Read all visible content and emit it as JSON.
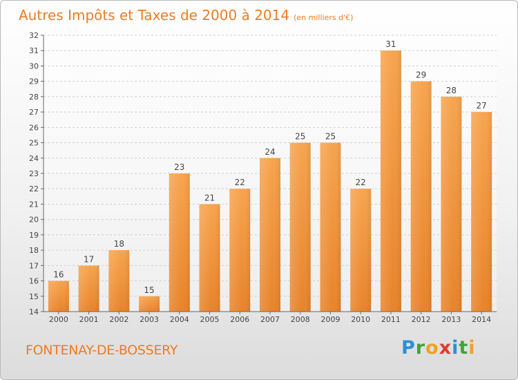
{
  "title": "Autres Impôts et Taxes de 2000 à 2014",
  "subtitle": "(en milliers d'€)",
  "commune": "FONTENAY-DE-BOSSERY",
  "logo": {
    "letters": [
      "P",
      "r",
      "o",
      "x",
      "i",
      "t",
      "i"
    ],
    "colors": [
      "#2e8fd6",
      "#43a23b",
      "#f0a12a",
      "#e23a2a",
      "#2e8fd6",
      "#43a23b",
      "#f0a12a"
    ]
  },
  "colors": {
    "bar_top": "#f7a44e",
    "bar_bottom": "#e8832a",
    "accent": "#ee7b22"
  },
  "chart_data": {
    "type": "bar",
    "title": "Autres Impôts et Taxes de 2000 à 2014",
    "subtitle": "(en milliers d'€)",
    "categories": [
      "2000",
      "2001",
      "2002",
      "2003",
      "2004",
      "2005",
      "2006",
      "2007",
      "2008",
      "2009",
      "2010",
      "2011",
      "2012",
      "2013",
      "2014"
    ],
    "values": [
      16,
      17,
      18,
      15,
      23,
      21,
      22,
      24,
      25,
      25,
      22,
      31,
      29,
      28,
      27
    ],
    "ylim": [
      14,
      32
    ],
    "yticks": [
      14,
      15,
      16,
      17,
      18,
      19,
      20,
      21,
      22,
      23,
      24,
      25,
      26,
      27,
      28,
      29,
      30,
      31,
      32
    ],
    "grid": true,
    "data_labels": true
  }
}
